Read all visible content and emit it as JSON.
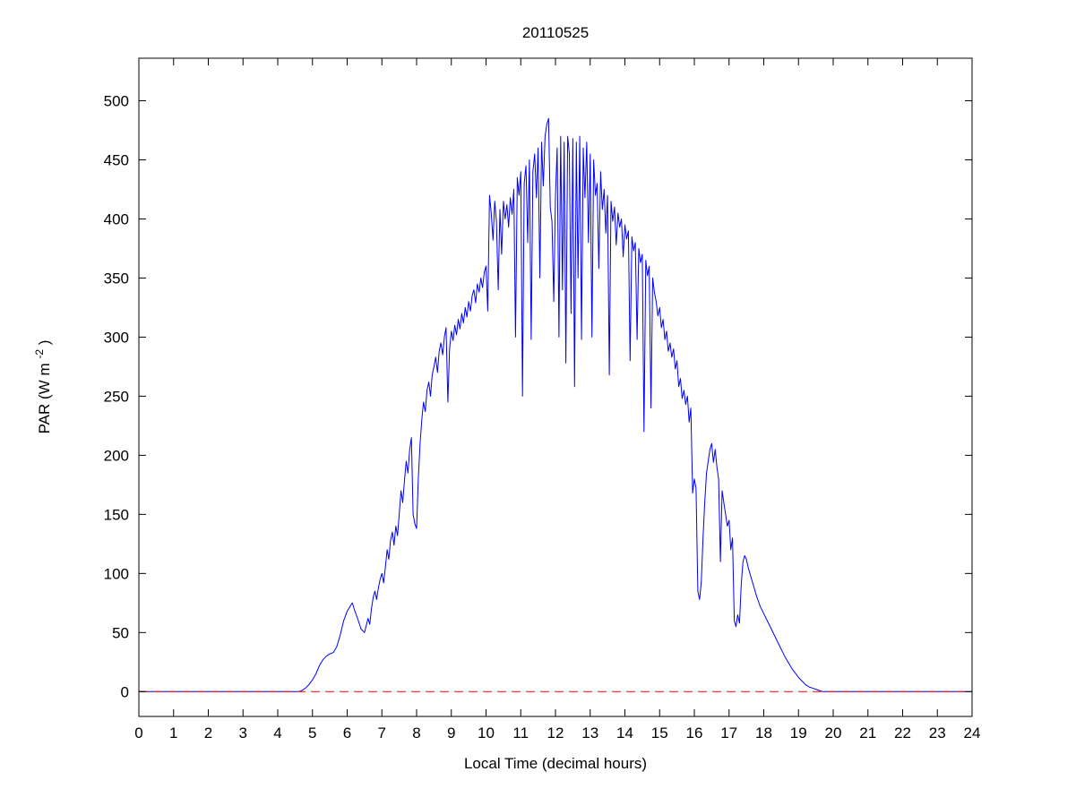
{
  "figure": {
    "background": "#ffffff"
  },
  "chart_data": {
    "type": "line",
    "title": "20110525",
    "xlabel": "Local Time (decimal hours)",
    "ylabel": {
      "prefix": "PAR (W m",
      "sup": "-2",
      "suffix": ")"
    },
    "xlim": [
      0,
      24
    ],
    "ylim": [
      -21,
      536
    ],
    "x_ticks": [
      0,
      1,
      2,
      3,
      4,
      5,
      6,
      7,
      8,
      9,
      10,
      11,
      12,
      13,
      14,
      15,
      16,
      17,
      18,
      19,
      20,
      21,
      22,
      23,
      24
    ],
    "y_ticks": [
      0,
      50,
      100,
      150,
      200,
      250,
      300,
      350,
      400,
      450,
      500
    ],
    "grid": false,
    "legend": null,
    "series": [
      {
        "name": "PAR",
        "color": "#0000ff",
        "style": "solid",
        "points": [
          [
            0,
            0
          ],
          [
            4.5,
            0
          ],
          [
            4.6,
            0
          ],
          [
            4.7,
            1
          ],
          [
            4.8,
            3
          ],
          [
            4.9,
            6
          ],
          [
            5.0,
            10
          ],
          [
            5.1,
            15
          ],
          [
            5.2,
            22
          ],
          [
            5.3,
            27
          ],
          [
            5.4,
            30
          ],
          [
            5.5,
            32
          ],
          [
            5.6,
            33
          ],
          [
            5.7,
            38
          ],
          [
            5.8,
            48
          ],
          [
            5.9,
            60
          ],
          [
            6.0,
            68
          ],
          [
            6.1,
            73
          ],
          [
            6.15,
            75
          ],
          [
            6.2,
            70
          ],
          [
            6.3,
            62
          ],
          [
            6.4,
            53
          ],
          [
            6.5,
            50
          ],
          [
            6.55,
            56
          ],
          [
            6.6,
            62
          ],
          [
            6.65,
            57
          ],
          [
            6.7,
            70
          ],
          [
            6.75,
            80
          ],
          [
            6.8,
            85
          ],
          [
            6.85,
            78
          ],
          [
            6.9,
            88
          ],
          [
            6.95,
            95
          ],
          [
            7.0,
            100
          ],
          [
            7.05,
            92
          ],
          [
            7.1,
            105
          ],
          [
            7.15,
            120
          ],
          [
            7.2,
            112
          ],
          [
            7.25,
            128
          ],
          [
            7.3,
            135
          ],
          [
            7.35,
            124
          ],
          [
            7.4,
            140
          ],
          [
            7.45,
            132
          ],
          [
            7.5,
            150
          ],
          [
            7.55,
            170
          ],
          [
            7.6,
            160
          ],
          [
            7.65,
            178
          ],
          [
            7.7,
            195
          ],
          [
            7.75,
            185
          ],
          [
            7.8,
            205
          ],
          [
            7.85,
            215
          ],
          [
            7.9,
            150
          ],
          [
            7.95,
            142
          ],
          [
            8.0,
            138
          ],
          [
            8.05,
            180
          ],
          [
            8.1,
            210
          ],
          [
            8.15,
            230
          ],
          [
            8.2,
            245
          ],
          [
            8.25,
            237
          ],
          [
            8.3,
            255
          ],
          [
            8.35,
            262
          ],
          [
            8.4,
            250
          ],
          [
            8.45,
            268
          ],
          [
            8.5,
            275
          ],
          [
            8.55,
            283
          ],
          [
            8.6,
            270
          ],
          [
            8.65,
            288
          ],
          [
            8.7,
            295
          ],
          [
            8.75,
            285
          ],
          [
            8.8,
            300
          ],
          [
            8.85,
            308
          ],
          [
            8.9,
            245
          ],
          [
            8.95,
            290
          ],
          [
            9.0,
            305
          ],
          [
            9.05,
            297
          ],
          [
            9.1,
            310
          ],
          [
            9.15,
            302
          ],
          [
            9.2,
            315
          ],
          [
            9.25,
            307
          ],
          [
            9.3,
            320
          ],
          [
            9.35,
            312
          ],
          [
            9.4,
            325
          ],
          [
            9.45,
            317
          ],
          [
            9.5,
            330
          ],
          [
            9.55,
            322
          ],
          [
            9.6,
            335
          ],
          [
            9.65,
            340
          ],
          [
            9.7,
            329
          ],
          [
            9.75,
            345
          ],
          [
            9.8,
            338
          ],
          [
            9.85,
            350
          ],
          [
            9.9,
            342
          ],
          [
            9.95,
            355
          ],
          [
            10.0,
            360
          ],
          [
            10.05,
            322
          ],
          [
            10.1,
            420
          ],
          [
            10.15,
            405
          ],
          [
            10.2,
            382
          ],
          [
            10.25,
            415
          ],
          [
            10.3,
            398
          ],
          [
            10.35,
            340
          ],
          [
            10.4,
            408
          ],
          [
            10.45,
            370
          ],
          [
            10.5,
            415
          ],
          [
            10.55,
            400
          ],
          [
            10.6,
            412
          ],
          [
            10.65,
            393
          ],
          [
            10.7,
            418
          ],
          [
            10.75,
            404
          ],
          [
            10.8,
            425
          ],
          [
            10.85,
            300
          ],
          [
            10.9,
            435
          ],
          [
            10.95,
            420
          ],
          [
            11.0,
            440
          ],
          [
            11.05,
            250
          ],
          [
            11.1,
            430
          ],
          [
            11.15,
            445
          ],
          [
            11.2,
            380
          ],
          [
            11.25,
            450
          ],
          [
            11.3,
            298
          ],
          [
            11.35,
            440
          ],
          [
            11.4,
            455
          ],
          [
            11.45,
            418
          ],
          [
            11.5,
            460
          ],
          [
            11.55,
            350
          ],
          [
            11.6,
            465
          ],
          [
            11.65,
            428
          ],
          [
            11.7,
            470
          ],
          [
            11.75,
            480
          ],
          [
            11.8,
            485
          ],
          [
            11.85,
            410
          ],
          [
            11.9,
            398
          ],
          [
            11.95,
            330
          ],
          [
            12.0,
            420
          ],
          [
            12.05,
            460
          ],
          [
            12.1,
            300
          ],
          [
            12.15,
            470
          ],
          [
            12.2,
            340
          ],
          [
            12.25,
            465
          ],
          [
            12.3,
            278
          ],
          [
            12.35,
            470
          ],
          [
            12.4,
            455
          ],
          [
            12.45,
            320
          ],
          [
            12.5,
            468
          ],
          [
            12.55,
            258
          ],
          [
            12.6,
            465
          ],
          [
            12.65,
            350
          ],
          [
            12.7,
            470
          ],
          [
            12.75,
            298
          ],
          [
            12.8,
            460
          ],
          [
            12.85,
            418
          ],
          [
            12.9,
            465
          ],
          [
            12.95,
            380
          ],
          [
            13.0,
            455
          ],
          [
            13.05,
            300
          ],
          [
            13.1,
            450
          ],
          [
            13.15,
            420
          ],
          [
            13.2,
            430
          ],
          [
            13.25,
            358
          ],
          [
            13.3,
            440
          ],
          [
            13.35,
            408
          ],
          [
            13.4,
            425
          ],
          [
            13.45,
            388
          ],
          [
            13.5,
            420
          ],
          [
            13.55,
            268
          ],
          [
            13.6,
            415
          ],
          [
            13.65,
            398
          ],
          [
            13.7,
            410
          ],
          [
            13.75,
            378
          ],
          [
            13.8,
            405
          ],
          [
            13.85,
            393
          ],
          [
            13.9,
            400
          ],
          [
            13.95,
            368
          ],
          [
            14.0,
            395
          ],
          [
            14.05,
            383
          ],
          [
            14.1,
            390
          ],
          [
            14.15,
            280
          ],
          [
            14.2,
            385
          ],
          [
            14.25,
            373
          ],
          [
            14.3,
            380
          ],
          [
            14.35,
            298
          ],
          [
            14.4,
            375
          ],
          [
            14.45,
            363
          ],
          [
            14.5,
            370
          ],
          [
            14.55,
            220
          ],
          [
            14.6,
            365
          ],
          [
            14.65,
            352
          ],
          [
            14.7,
            360
          ],
          [
            14.75,
            240
          ],
          [
            14.8,
            350
          ],
          [
            14.85,
            338
          ],
          [
            14.9,
            330
          ],
          [
            14.95,
            318
          ],
          [
            15.0,
            325
          ],
          [
            15.05,
            308
          ],
          [
            15.1,
            315
          ],
          [
            15.15,
            298
          ],
          [
            15.2,
            305
          ],
          [
            15.25,
            288
          ],
          [
            15.3,
            295
          ],
          [
            15.35,
            283
          ],
          [
            15.4,
            290
          ],
          [
            15.45,
            273
          ],
          [
            15.5,
            280
          ],
          [
            15.55,
            258
          ],
          [
            15.6,
            265
          ],
          [
            15.65,
            248
          ],
          [
            15.7,
            255
          ],
          [
            15.75,
            243
          ],
          [
            15.8,
            250
          ],
          [
            15.85,
            228
          ],
          [
            15.9,
            240
          ],
          [
            15.95,
            168
          ],
          [
            16.0,
            180
          ],
          [
            16.05,
            172
          ],
          [
            16.1,
            85
          ],
          [
            16.15,
            78
          ],
          [
            16.2,
            92
          ],
          [
            16.25,
            130
          ],
          [
            16.3,
            160
          ],
          [
            16.35,
            185
          ],
          [
            16.4,
            195
          ],
          [
            16.45,
            205
          ],
          [
            16.5,
            210
          ],
          [
            16.55,
            194
          ],
          [
            16.6,
            205
          ],
          [
            16.65,
            190
          ],
          [
            16.7,
            180
          ],
          [
            16.75,
            110
          ],
          [
            16.8,
            170
          ],
          [
            16.85,
            160
          ],
          [
            16.9,
            150
          ],
          [
            16.95,
            140
          ],
          [
            17.0,
            145
          ],
          [
            17.05,
            120
          ],
          [
            17.1,
            130
          ],
          [
            17.15,
            60
          ],
          [
            17.2,
            55
          ],
          [
            17.25,
            65
          ],
          [
            17.3,
            58
          ],
          [
            17.35,
            90
          ],
          [
            17.4,
            110
          ],
          [
            17.45,
            115
          ],
          [
            17.5,
            112
          ],
          [
            17.55,
            105
          ],
          [
            17.6,
            100
          ],
          [
            17.65,
            95
          ],
          [
            17.7,
            90
          ],
          [
            17.75,
            85
          ],
          [
            17.8,
            80
          ],
          [
            17.85,
            76
          ],
          [
            17.9,
            72
          ],
          [
            18.0,
            66
          ],
          [
            18.1,
            60
          ],
          [
            18.2,
            54
          ],
          [
            18.3,
            48
          ],
          [
            18.4,
            42
          ],
          [
            18.5,
            36
          ],
          [
            18.6,
            30
          ],
          [
            18.7,
            25
          ],
          [
            18.8,
            20
          ],
          [
            18.9,
            16
          ],
          [
            19.0,
            12
          ],
          [
            19.1,
            9
          ],
          [
            19.2,
            6
          ],
          [
            19.3,
            4
          ],
          [
            19.4,
            3
          ],
          [
            19.5,
            2
          ],
          [
            19.6,
            1
          ],
          [
            19.7,
            0
          ],
          [
            20.0,
            0
          ],
          [
            24.0,
            0
          ]
        ]
      },
      {
        "name": "zero-reference",
        "color": "#ff0000",
        "style": "dashed",
        "points": [
          [
            0,
            0
          ],
          [
            24,
            0
          ]
        ]
      }
    ]
  }
}
